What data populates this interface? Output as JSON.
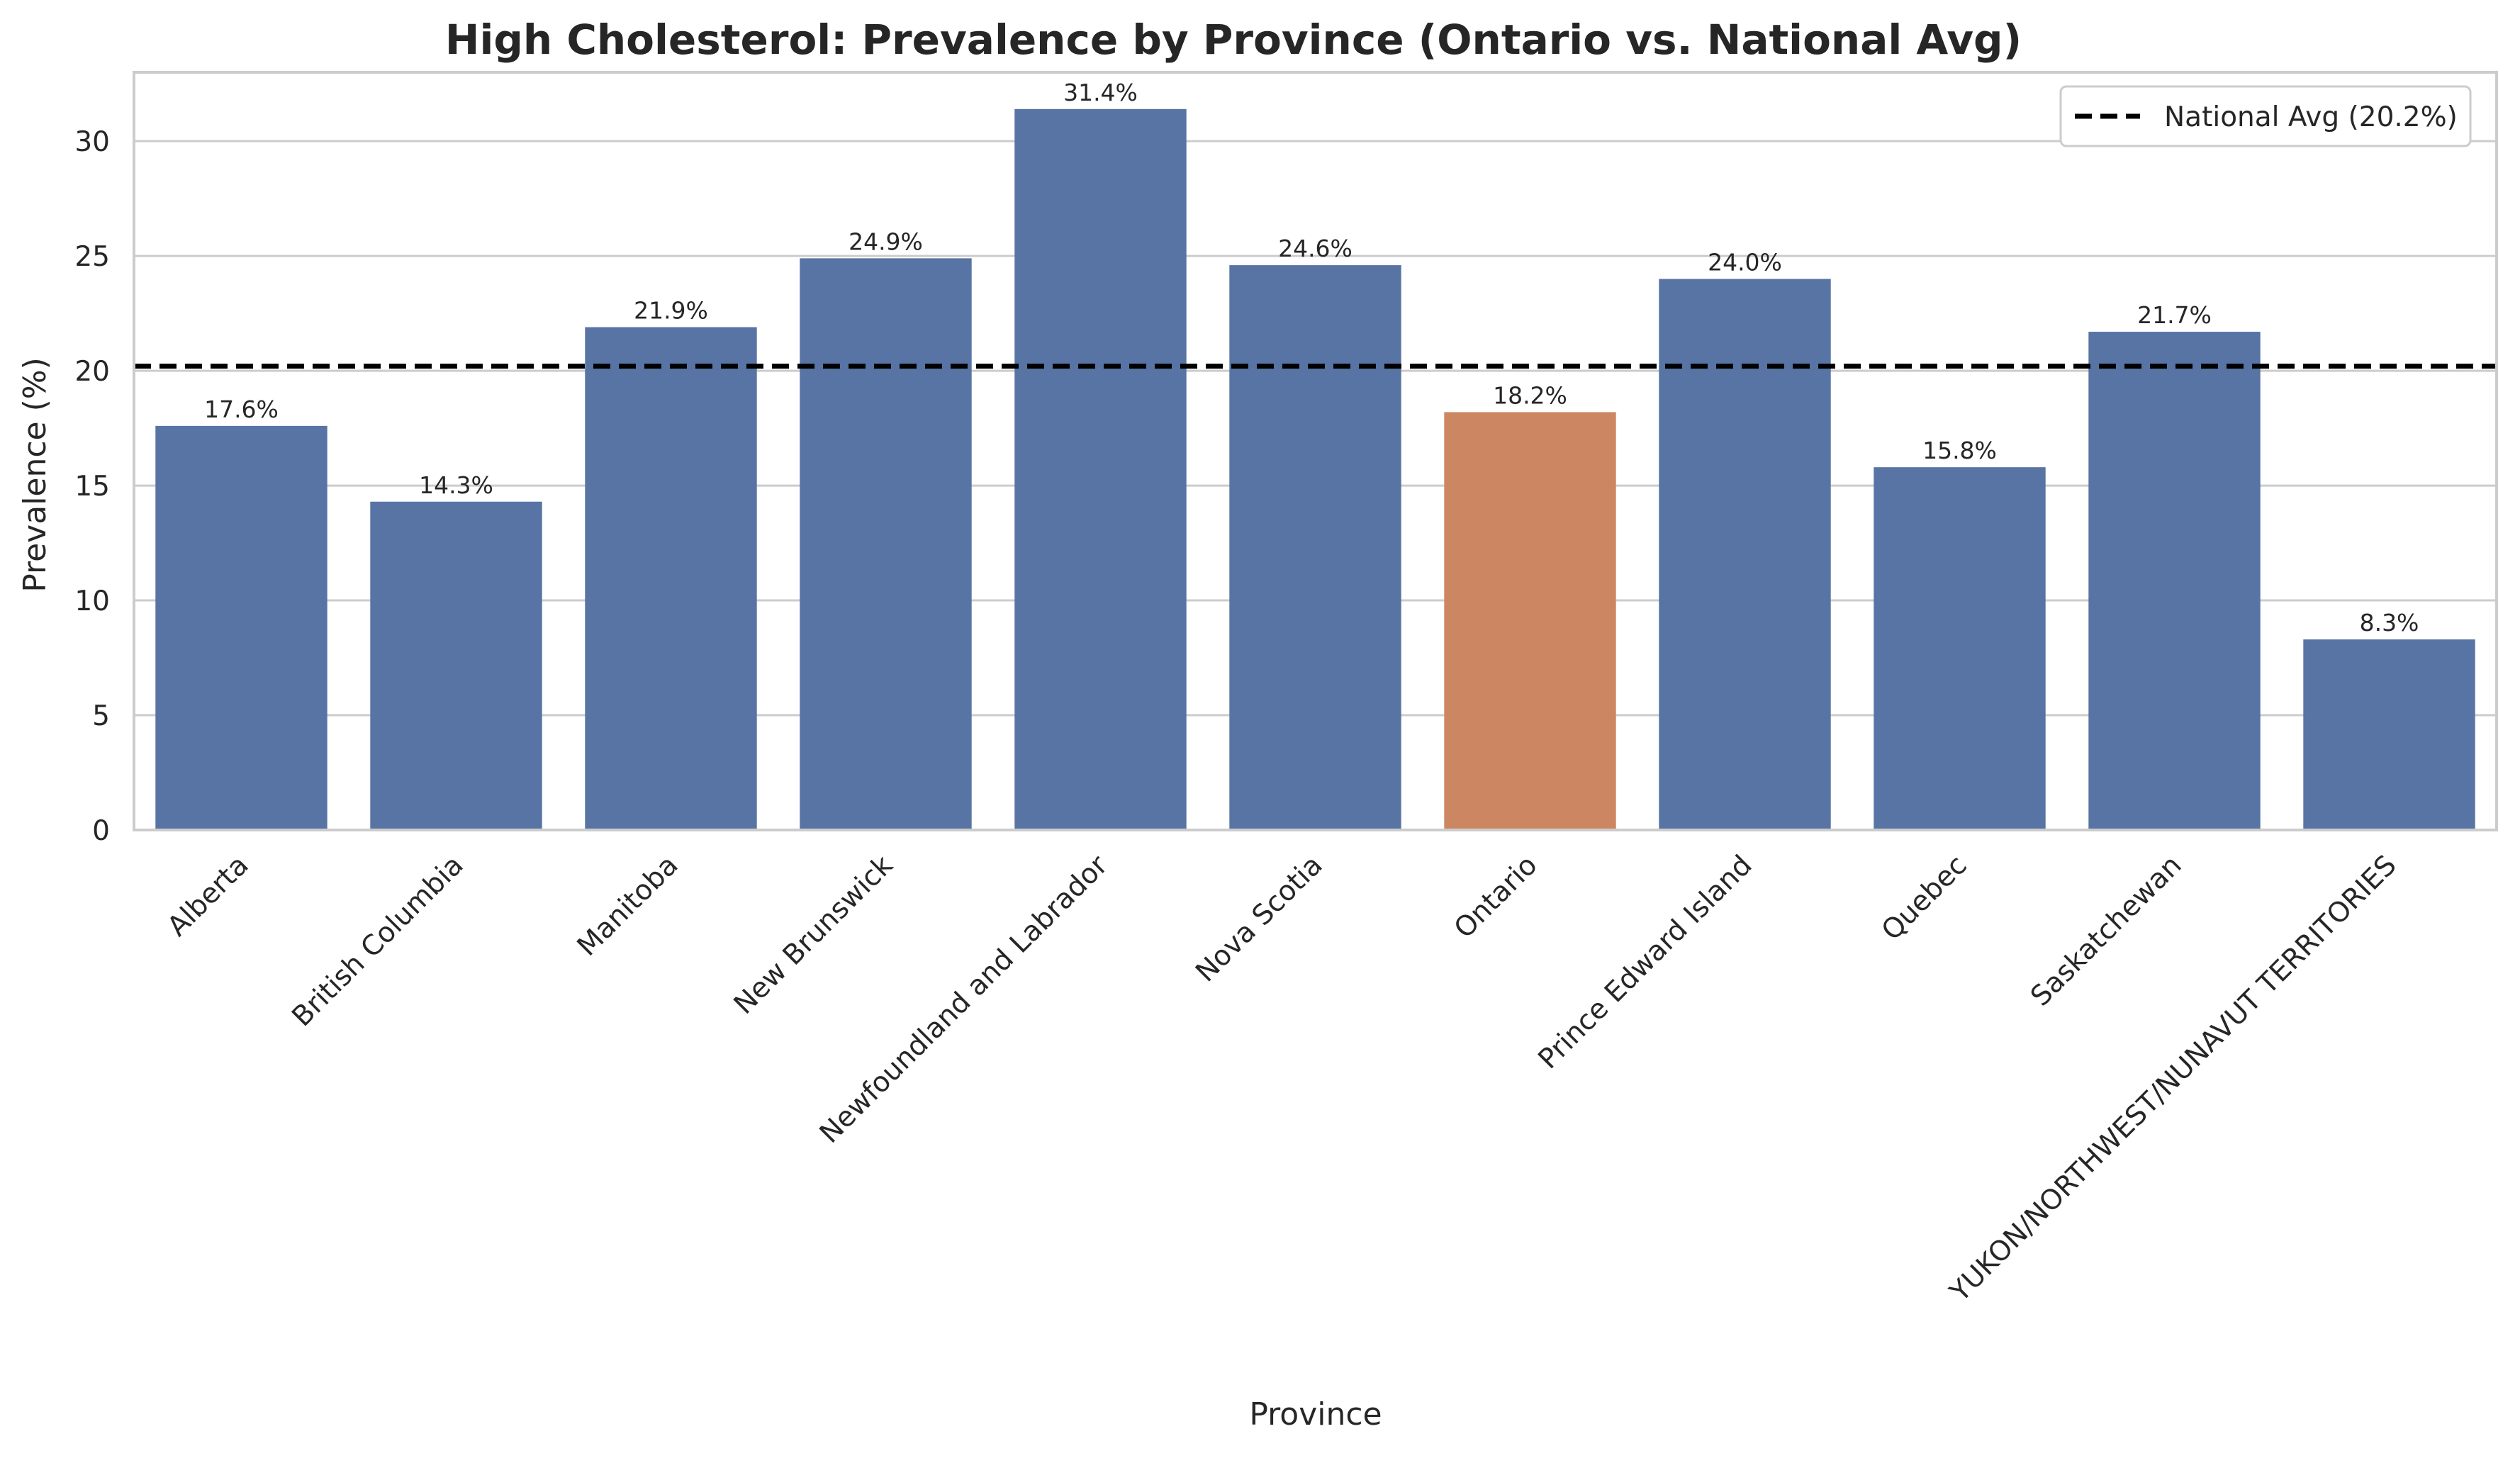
{
  "chart_data": {
    "type": "bar",
    "title": "High Cholesterol: Prevalence by Province (Ontario vs. National Avg)",
    "xlabel": "Province",
    "ylabel": "Prevalence (%)",
    "ylim": [
      0,
      33
    ],
    "yticks": [
      0,
      5,
      10,
      15,
      20,
      25,
      30
    ],
    "grid": "horizontal",
    "legend_position": "top-right",
    "categories": [
      "Alberta",
      "British Columbia",
      "Manitoba",
      "New Brunswick",
      "Newfoundland and Labrador",
      "Nova Scotia",
      "Ontario",
      "Prince Edward Island",
      "Quebec",
      "Saskatchewan",
      "YUKON/NORTHWEST/NUNAVUT TERRITORIES"
    ],
    "values": [
      17.6,
      14.3,
      21.9,
      24.9,
      31.4,
      24.6,
      18.2,
      24.0,
      15.8,
      21.7,
      8.3
    ],
    "data_labels": [
      "17.6%",
      "14.3%",
      "21.9%",
      "24.9%",
      "31.4%",
      "24.6%",
      "18.2%",
      "24.0%",
      "15.8%",
      "21.7%",
      "8.3%"
    ],
    "highlight_category": "Ontario",
    "colors": {
      "default_bar": "#5874a4",
      "highlight_bar": "#cc8762",
      "reference_line": "#000000",
      "grid": "#cccccc",
      "axes": "#cccccc"
    },
    "reference_line": {
      "value": 20.2,
      "style": "dashed",
      "label": "National Avg (20.2%)"
    }
  }
}
